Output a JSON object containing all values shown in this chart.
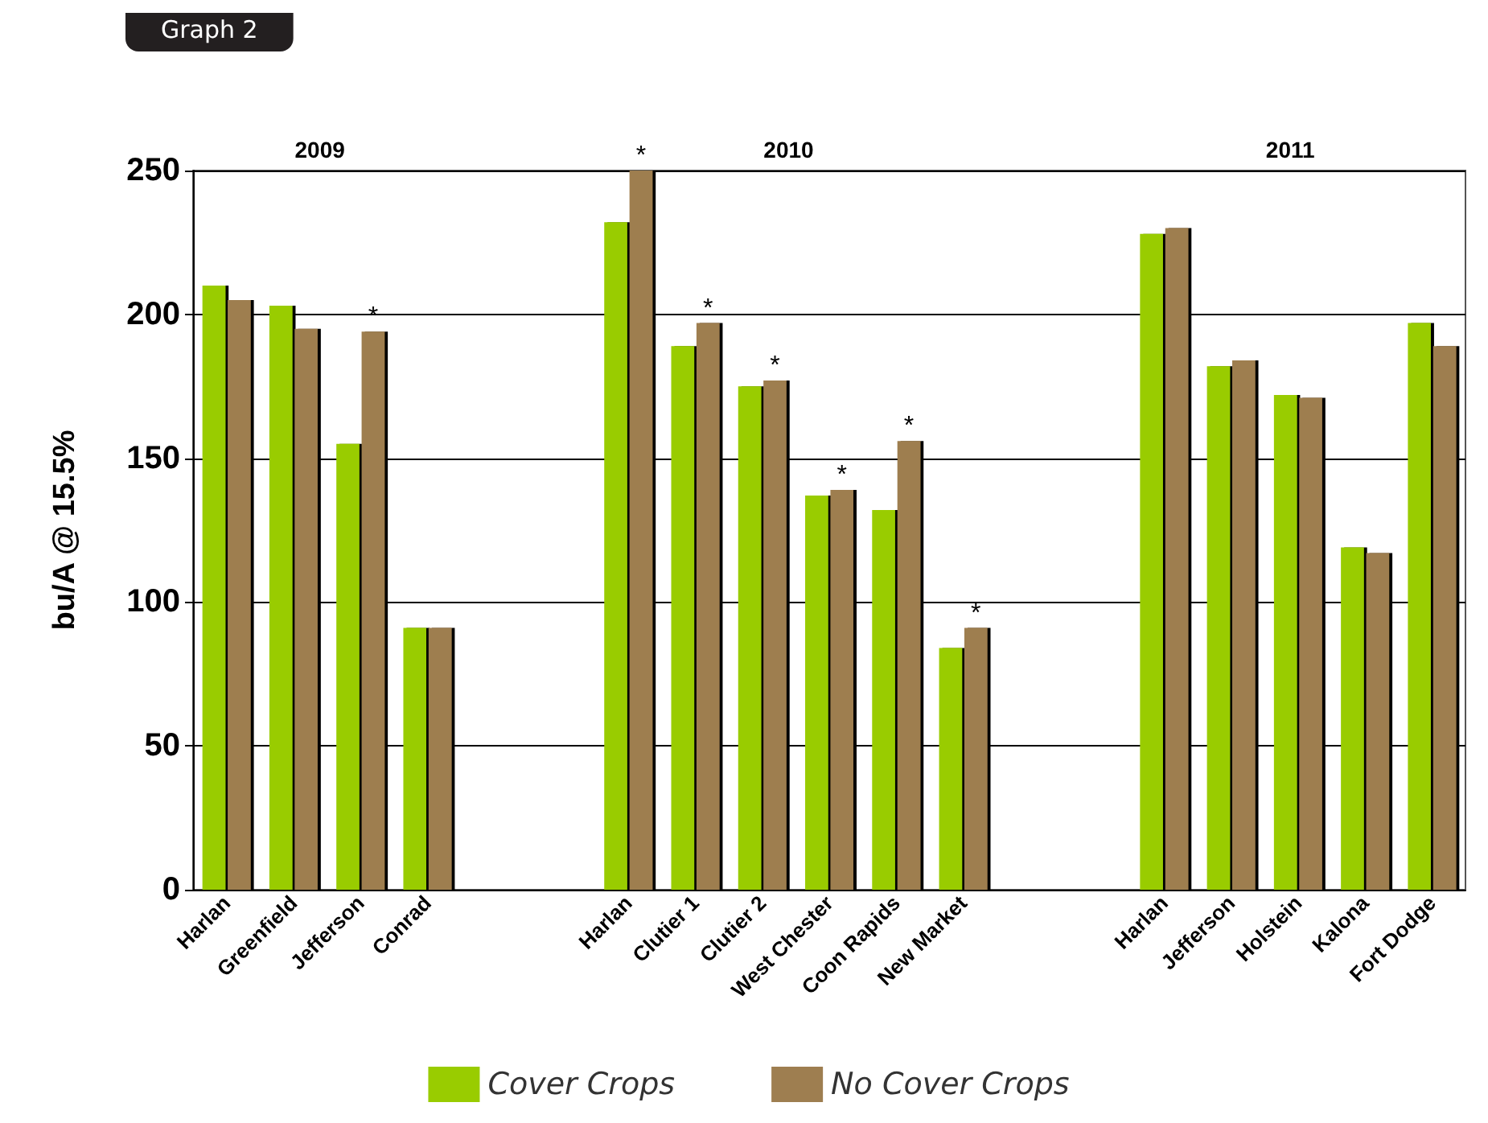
{
  "chart_data": {
    "type": "bar",
    "title": "Graph 2",
    "ylabel": "bu/A @ 15.5%",
    "categories": [
      "Harlan",
      "Greenfield",
      "Jefferson",
      "Conrad",
      null,
      null,
      "Harlan",
      "Clutier 1",
      "Clutier 2",
      "West Chester",
      "Coon Rapids",
      "New Market",
      null,
      null,
      "Harlan",
      "Jefferson",
      "Holstein",
      "Kalona",
      "Fort Dodge"
    ],
    "series": [
      {
        "name": "Cover Crops",
        "color": "#99cc00",
        "values": [
          210,
          203,
          155,
          91,
          null,
          null,
          232,
          189,
          175,
          137,
          132,
          84,
          null,
          null,
          228,
          182,
          172,
          119,
          197
        ]
      },
      {
        "name": "No Cover Crops",
        "color": "#9e7e50",
        "values": [
          205,
          195,
          194,
          91,
          null,
          null,
          250,
          197,
          177,
          139,
          156,
          91,
          null,
          null,
          230,
          184,
          171,
          117,
          189
        ],
        "value_labels": [
          null,
          null,
          "*",
          null,
          null,
          null,
          "*",
          "*",
          "*",
          "*",
          "*",
          "*",
          null,
          null,
          null,
          null,
          null,
          null,
          null
        ]
      }
    ],
    "annotations": [
      "2009",
      "2010",
      "2011"
    ],
    "ylim": [
      0,
      250
    ],
    "yticks": [
      0,
      50,
      100,
      150,
      200,
      250
    ],
    "grid": "y",
    "legend": "bottom"
  }
}
